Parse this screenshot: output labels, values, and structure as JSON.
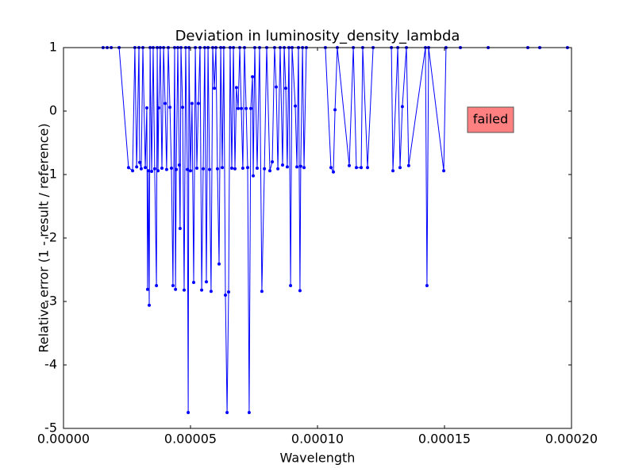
{
  "chart_data": {
    "type": "line",
    "title": "Deviation in luminosity_density_lambda",
    "xlabel": "Wavelength",
    "ylabel": "Relative error (1 - result / reference)",
    "annotation": "failed",
    "color": "#0000ff",
    "xlim": [
      0,
      0.0002
    ],
    "ylim": [
      -5,
      1
    ],
    "xticks": [
      {
        "value": 0,
        "label": "0.00000"
      },
      {
        "value": 5e-05,
        "label": "0.00005"
      },
      {
        "value": 0.0001,
        "label": "0.00010"
      },
      {
        "value": 0.00015,
        "label": "0.00015"
      },
      {
        "value": 0.0002,
        "label": "0.00020"
      }
    ],
    "yticks": [
      -5,
      -4,
      -3,
      -2,
      -1,
      0,
      1
    ],
    "x": [
      1.56e-05,
      1.72e-05,
      1.88e-05,
      2.19e-05,
      2.56e-05,
      2.72e-05,
      2.81e-05,
      2.88e-05,
      2.97e-05,
      3e-05,
      3.06e-05,
      3.125e-05,
      3.22e-05,
      3.28e-05,
      3.31e-05,
      3.34e-05,
      3.375e-05,
      3.41e-05,
      3.47e-05,
      3.53e-05,
      3.59e-05,
      3.66e-05,
      3.69e-05,
      3.72e-05,
      3.75e-05,
      3.81e-05,
      3.875e-05,
      3.94e-05,
      4e-05,
      4.06e-05,
      4.125e-05,
      4.19e-05,
      4.25e-05,
      4.31e-05,
      4.375e-05,
      4.41e-05,
      4.44e-05,
      4.5e-05,
      4.56e-05,
      4.59e-05,
      4.625e-05,
      4.69e-05,
      4.75e-05,
      4.81e-05,
      4.875e-05,
      4.91e-05,
      4.94e-05,
      5e-05,
      5.06e-05,
      5.125e-05,
      5.19e-05,
      5.25e-05,
      5.31e-05,
      5.375e-05,
      5.44e-05,
      5.5e-05,
      5.56e-05,
      5.625e-05,
      5.69e-05,
      5.75e-05,
      5.81e-05,
      5.875e-05,
      5.94e-05,
      6e-05,
      6.06e-05,
      6.125e-05,
      6.19e-05,
      6.25e-05,
      6.31e-05,
      6.375e-05,
      6.44e-05,
      6.5e-05,
      6.56e-05,
      6.625e-05,
      6.69e-05,
      6.75e-05,
      6.81e-05,
      6.875e-05,
      6.94e-05,
      7e-05,
      7.06e-05,
      7.125e-05,
      7.19e-05,
      7.25e-05,
      7.31e-05,
      7.375e-05,
      7.44e-05,
      7.47e-05,
      7.53e-05,
      7.625e-05,
      7.72e-05,
      7.81e-05,
      7.91e-05,
      8e-05,
      8.125e-05,
      8.22e-05,
      8.31e-05,
      8.375e-05,
      8.44e-05,
      8.53e-05,
      8.625e-05,
      8.69e-05,
      8.75e-05,
      8.81e-05,
      8.875e-05,
      8.94e-05,
      9e-05,
      9.125e-05,
      9.19e-05,
      9.25e-05,
      9.31e-05,
      9.34e-05,
      9.41e-05,
      9.47e-05,
      9.56e-05,
      0.0001031,
      0.0001053,
      0.00010625,
      0.0001069,
      0.0001078,
      0.0001125,
      0.0001141,
      0.0001153,
      0.0001172,
      0.0001178,
      0.0001197,
      0.0001219,
      0.0001291,
      0.0001297,
      0.0001316,
      0.0001325,
      0.0001334,
      0.000135,
      0.0001359,
      0.0001425,
      0.0001431,
      0.00014375,
      0.0001497,
      0.0001506,
      0.00015625,
      0.0001672,
      0.0001828,
      0.0001875,
      0.0001984
    ],
    "values": [
      1,
      1,
      1,
      1,
      -0.89,
      -0.94,
      1,
      -0.88,
      1,
      -0.81,
      -0.91,
      1,
      -0.89,
      0.05,
      -2.81,
      -0.94,
      -3.06,
      1,
      -0.95,
      1,
      -0.91,
      -2.75,
      1,
      -0.94,
      0.05,
      1,
      -0.9,
      1,
      0.12,
      -0.92,
      1,
      0.06,
      -0.9,
      -2.75,
      1,
      -2.81,
      -0.92,
      1,
      -0.85,
      -1.85,
      1,
      0.06,
      -2.82,
      1,
      -0.92,
      -4.75,
      1,
      -0.94,
      0.12,
      -2.7,
      1,
      -0.9,
      0.12,
      1,
      -2.82,
      -0.91,
      1,
      -2.69,
      1,
      -0.92,
      -2.84,
      1,
      0.36,
      1,
      -0.91,
      -2.41,
      1,
      -0.89,
      1,
      -2.9,
      -4.75,
      -2.85,
      1,
      -0.9,
      1,
      -0.91,
      0.37,
      0.04,
      1,
      0.04,
      -0.9,
      1,
      0.04,
      -0.89,
      -4.75,
      0.04,
      0.54,
      -1.02,
      1,
      -0.9,
      1,
      -2.84,
      -0.91,
      1,
      -0.94,
      -0.8,
      1,
      0.38,
      -0.91,
      1,
      -0.85,
      1,
      0.36,
      -0.88,
      1,
      -2.75,
      1,
      0.08,
      -0.88,
      1,
      -2.83,
      -0.87,
      1,
      -0.89,
      1,
      1,
      -0.89,
      -0.96,
      0.02,
      1,
      -0.86,
      1,
      -0.89,
      -0.89,
      1,
      -0.89,
      1,
      1,
      -0.94,
      1,
      -0.89,
      0.07,
      1,
      -0.86,
      1,
      -2.75,
      1,
      -0.94,
      1,
      1,
      1,
      1,
      1,
      1
    ]
  }
}
